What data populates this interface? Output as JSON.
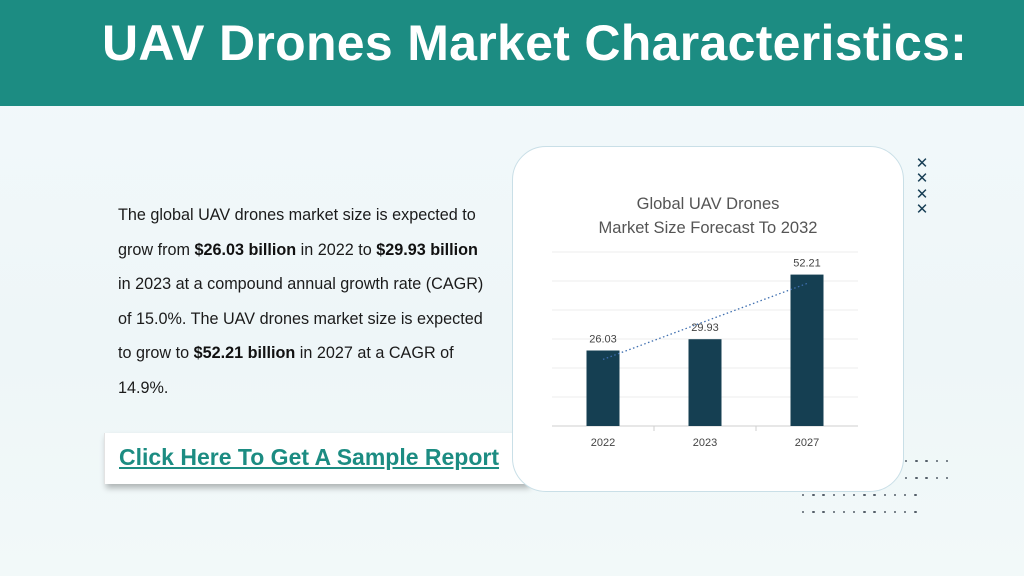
{
  "title": "UAV Drones Market Characteristics:",
  "paragraph": {
    "p1": "The global UAV drones market size is expected to grow from ",
    "b1": "$26.03 billion",
    "p2": " in 2022 to ",
    "b2": "$29.93 billion",
    "p3": " in 2023 at a compound annual growth rate (CAGR) of 15.0%. The UAV drones market size is expected to grow to ",
    "b3": "$52.21 billion",
    "p4": " in 2027 at a CAGR of 14.9%."
  },
  "cta_label": "Click Here To Get A Sample Report",
  "colors": {
    "header": "#1c8c82",
    "bar": "#153f52",
    "link": "#1c8c82",
    "trendline": "#3f6fb0"
  },
  "icons": [
    "close-icon",
    "close-icon",
    "close-icon",
    "close-icon"
  ],
  "chart_data": {
    "type": "bar",
    "title_lines": [
      "Global UAV Drones",
      "Market Size Forecast To 2032"
    ],
    "categories": [
      "2022",
      "2023",
      "2027"
    ],
    "values": [
      26.03,
      29.93,
      52.21
    ],
    "data_labels": [
      "26.03",
      "29.93",
      "52.21"
    ],
    "ylim": [
      0,
      60
    ],
    "grid": true,
    "trendline": "linear dotted",
    "legend": "none"
  }
}
